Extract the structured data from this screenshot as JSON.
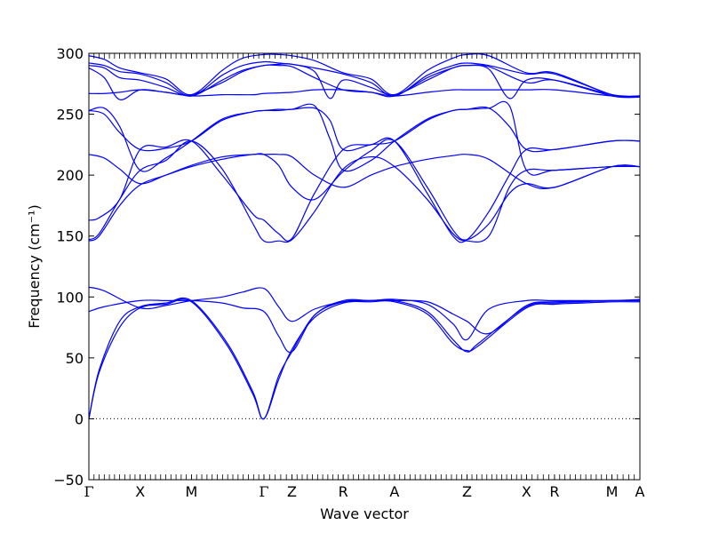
{
  "chart_data": {
    "type": "line",
    "title": "",
    "xlabel": "Wave vector",
    "ylabel": "Frequency (cm⁻¹)",
    "ylim": [
      -50,
      300
    ],
    "yticks": [
      -50,
      0,
      50,
      100,
      150,
      200,
      250,
      300
    ],
    "zero_line": {
      "value": 0,
      "style": "dotted"
    },
    "grid": false,
    "line_color": "#0000ff",
    "kpoints": [
      {
        "label": "Γ",
        "x": 0
      },
      {
        "label": "X",
        "x": 0.5
      },
      {
        "label": "M",
        "x": 1.0
      },
      {
        "label": "Γ",
        "x": 1.707
      },
      {
        "label": "Z",
        "x": 1.98
      },
      {
        "label": "R",
        "x": 2.48
      },
      {
        "label": "A",
        "x": 2.98
      },
      {
        "label": "Z",
        "x": 3.687
      },
      {
        "label": "X",
        "x": 4.267
      },
      {
        "label": "R",
        "x": 4.54
      },
      {
        "label": "M",
        "x": 5.1
      },
      {
        "label": "A",
        "x": 5.373
      }
    ],
    "series": [
      {
        "x": [
          0,
          0.1,
          0.3,
          0.5,
          0.75,
          1.0,
          1.35,
          1.6,
          1.707,
          1.85,
          1.98,
          2.2,
          2.48,
          2.75,
          2.98,
          3.3,
          3.55,
          3.687,
          3.8,
          4.267,
          4.54,
          4.8,
          5.1,
          5.373
        ],
        "values": [
          0,
          40,
          80,
          92,
          95,
          97,
          62,
          22,
          0,
          35,
          55,
          85,
          96,
          97,
          97,
          88,
          65,
          55,
          62,
          92,
          95,
          96,
          97,
          97
        ]
      },
      {
        "x": [
          0,
          0.1,
          0.3,
          0.5,
          0.75,
          1.0,
          1.35,
          1.6,
          1.707,
          1.85,
          1.98,
          2.2,
          2.48,
          2.75,
          2.98,
          3.3,
          3.55,
          3.687,
          3.8,
          4.267,
          4.54,
          4.8,
          5.1,
          5.373
        ],
        "values": [
          0,
          38,
          75,
          91,
          94,
          96,
          60,
          20,
          0,
          32,
          57,
          83,
          95,
          96,
          96,
          86,
          62,
          56,
          60,
          91,
          94,
          95,
          96,
          96
        ]
      },
      {
        "x": [
          0,
          0.15,
          0.5,
          0.75,
          1.0,
          1.3,
          1.5,
          1.707,
          1.85,
          1.98,
          2.2,
          2.48,
          2.75,
          2.98,
          3.3,
          3.55,
          3.687,
          3.9,
          4.267,
          4.54,
          5.1,
          5.373
        ],
        "values": [
          88,
          92,
          97,
          97,
          97,
          95,
          91,
          88,
          68,
          55,
          85,
          97,
          97,
          98,
          94,
          78,
          65,
          90,
          97,
          97,
          97,
          97
        ]
      },
      {
        "x": [
          0,
          0.15,
          0.5,
          0.75,
          1.0,
          1.3,
          1.5,
          1.707,
          1.85,
          1.98,
          2.2,
          2.48,
          2.75,
          2.98,
          3.3,
          3.55,
          3.687,
          3.9,
          4.267,
          4.54,
          5.1,
          5.373
        ],
        "values": [
          108,
          105,
          91,
          93,
          97,
          100,
          104,
          107,
          92,
          80,
          90,
          96,
          97,
          97,
          96,
          86,
          80,
          70,
          93,
          96,
          97,
          98
        ]
      },
      {
        "x": [
          0,
          0.1,
          0.3,
          0.5,
          0.75,
          1.0,
          1.3,
          1.6,
          1.707,
          1.85,
          1.98,
          2.2,
          2.48,
          2.75,
          2.98,
          3.3,
          3.55,
          3.687,
          3.9,
          4.1,
          4.267,
          4.54,
          5.1,
          5.373
        ],
        "values": [
          146,
          150,
          175,
          192,
          200,
          208,
          215,
          217,
          217,
          208,
          190,
          180,
          203,
          220,
          228,
          190,
          155,
          147,
          160,
          185,
          193,
          190,
          207,
          207
        ]
      },
      {
        "x": [
          0,
          0.1,
          0.3,
          0.5,
          0.75,
          1.0,
          1.3,
          1.6,
          1.707,
          1.85,
          1.98,
          2.2,
          2.48,
          2.75,
          2.98,
          3.3,
          3.55,
          3.687,
          3.9,
          4.1,
          4.267,
          4.54,
          5.1,
          5.373
        ],
        "values": [
          147,
          152,
          180,
          204,
          212,
          228,
          205,
          160,
          146,
          146,
          147,
          170,
          205,
          215,
          207,
          180,
          152,
          146,
          150,
          190,
          204,
          204,
          207,
          207
        ]
      },
      {
        "x": [
          0,
          0.1,
          0.3,
          0.5,
          0.75,
          1.0,
          1.3,
          1.6,
          1.707,
          1.85,
          1.98,
          2.2,
          2.48,
          2.75,
          2.98,
          3.3,
          3.55,
          3.687,
          3.9,
          4.1,
          4.267,
          4.54,
          5.1,
          5.373
        ],
        "values": [
          163,
          165,
          180,
          221,
          223,
          228,
          200,
          168,
          163,
          152,
          148,
          185,
          221,
          225,
          228,
          185,
          150,
          147,
          170,
          200,
          221,
          221,
          228,
          228
        ]
      },
      {
        "x": [
          0,
          0.15,
          0.3,
          0.5,
          0.75,
          1.0,
          1.3,
          1.6,
          1.707,
          1.85,
          1.98,
          2.2,
          2.48,
          2.75,
          2.98,
          3.3,
          3.55,
          3.687,
          3.9,
          4.267,
          4.54,
          5.1,
          5.373
        ],
        "values": [
          217,
          214,
          205,
          193,
          200,
          207,
          213,
          217,
          217,
          217,
          215,
          200,
          190,
          200,
          207,
          213,
          216,
          217,
          213,
          193,
          190,
          207,
          207
        ]
      },
      {
        "x": [
          0,
          0.15,
          0.3,
          0.5,
          0.75,
          1.0,
          1.3,
          1.6,
          1.707,
          1.85,
          1.98,
          2.2,
          2.35,
          2.48,
          2.75,
          2.98,
          3.3,
          3.55,
          3.687,
          3.9,
          4.1,
          4.267,
          4.54,
          5.1,
          5.373
        ],
        "values": [
          253,
          250,
          235,
          221,
          222,
          228,
          245,
          252,
          253,
          253,
          254,
          255,
          245,
          221,
          225,
          228,
          245,
          253,
          254,
          255,
          240,
          221,
          221,
          228,
          228
        ]
      },
      {
        "x": [
          0,
          0.15,
          0.3,
          0.5,
          0.75,
          1.0,
          1.3,
          1.6,
          1.707,
          1.85,
          1.98,
          2.2,
          2.35,
          2.48,
          2.75,
          2.98,
          3.3,
          3.55,
          3.687,
          3.9,
          4.1,
          4.267,
          4.54,
          5.1,
          5.373
        ],
        "values": [
          253,
          255,
          240,
          204,
          214,
          228,
          246,
          252,
          253,
          254,
          254,
          257,
          230,
          204,
          212,
          228,
          246,
          253,
          254,
          255,
          257,
          204,
          204,
          207,
          207
        ]
      },
      {
        "x": [
          0,
          0.15,
          0.3,
          0.5,
          0.75,
          1.0,
          1.3,
          1.6,
          1.707,
          1.98,
          2.2,
          2.48,
          2.75,
          2.98,
          3.3,
          3.55,
          3.687,
          3.9,
          4.267,
          4.54,
          5.1,
          5.373
        ],
        "values": [
          267,
          267,
          268,
          270,
          268,
          265,
          266,
          266,
          267,
          268,
          270,
          270,
          268,
          265,
          268,
          270,
          270,
          270,
          270,
          270,
          265,
          264
        ]
      },
      {
        "x": [
          0,
          0.15,
          0.3,
          0.5,
          0.75,
          1.0,
          1.3,
          1.5,
          1.707,
          1.85,
          1.98,
          2.2,
          2.48,
          2.75,
          2.98,
          3.3,
          3.55,
          3.687,
          3.9,
          4.267,
          4.54,
          5.1,
          5.373
        ],
        "values": [
          288,
          280,
          262,
          270,
          268,
          266,
          276,
          285,
          290,
          290,
          289,
          280,
          270,
          268,
          265,
          280,
          288,
          290,
          289,
          276,
          278,
          266,
          265
        ]
      },
      {
        "x": [
          0,
          0.15,
          0.3,
          0.5,
          0.75,
          1.0,
          1.3,
          1.5,
          1.707,
          1.85,
          1.98,
          2.2,
          2.35,
          2.48,
          2.75,
          2.98,
          3.3,
          3.55,
          3.687,
          3.9,
          4.1,
          4.267,
          4.54,
          5.1,
          5.373
        ],
        "values": [
          290,
          288,
          280,
          278,
          272,
          265,
          278,
          286,
          290,
          291,
          291,
          285,
          263,
          278,
          272,
          266,
          278,
          288,
          290,
          287,
          263,
          278,
          278,
          265,
          264
        ]
      },
      {
        "x": [
          0,
          0.15,
          0.3,
          0.5,
          0.75,
          1.0,
          1.3,
          1.5,
          1.707,
          1.85,
          1.98,
          2.2,
          2.48,
          2.75,
          2.98,
          3.3,
          3.55,
          3.687,
          3.9,
          4.267,
          4.54,
          5.1,
          5.373
        ],
        "values": [
          292,
          290,
          285,
          283,
          276,
          265,
          282,
          290,
          293,
          292,
          291,
          288,
          283,
          276,
          265,
          282,
          290,
          292,
          290,
          283,
          283,
          266,
          265
        ]
      },
      {
        "x": [
          0,
          0.15,
          0.3,
          0.5,
          0.75,
          1.0,
          1.3,
          1.5,
          1.707,
          1.85,
          1.98,
          2.2,
          2.48,
          2.75,
          2.98,
          3.3,
          3.55,
          3.687,
          3.9,
          4.267,
          4.54,
          5.1,
          5.373
        ],
        "values": [
          298,
          295,
          288,
          284,
          279,
          266,
          286,
          296,
          299,
          299,
          298,
          294,
          284,
          279,
          266,
          286,
          296,
          299,
          298,
          284,
          284,
          266,
          265
        ]
      }
    ]
  }
}
